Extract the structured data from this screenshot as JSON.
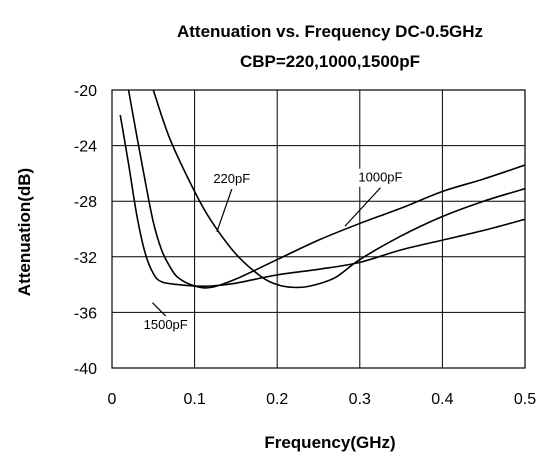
{
  "chart_data": {
    "type": "line",
    "title": "Attenuation vs. Frequency DC-0.5GHz",
    "subtitle": "CBP=220,1000,1500pF",
    "xlabel": "Frequency(GHz)",
    "ylabel": "Attenuation(dB)",
    "xlim": [
      0,
      0.5
    ],
    "ylim": [
      -40,
      -20
    ],
    "xticks": [
      0,
      0.1,
      0.2,
      0.3,
      0.4,
      0.5
    ],
    "xtick_labels": [
      "0",
      "0.1",
      "0.2",
      "0.3",
      "0.4",
      "0.5"
    ],
    "yticks": [
      -40,
      -36,
      -32,
      -28,
      -24,
      -20
    ],
    "ytick_labels": [
      "-40",
      "-36",
      "-32",
      "-28",
      "-24",
      "-20"
    ],
    "grid": true,
    "legend": "none (curves labeled inline)",
    "series": [
      {
        "name": "220pF",
        "x": [
          0.05,
          0.07,
          0.1,
          0.12,
          0.15,
          0.18,
          0.2,
          0.22,
          0.24,
          0.27,
          0.3,
          0.35,
          0.4,
          0.45,
          0.5
        ],
        "y": [
          -20,
          -23.5,
          -27.3,
          -29.4,
          -31.8,
          -33.4,
          -34.0,
          -34.2,
          -34.1,
          -33.5,
          -32.2,
          -30.5,
          -29.1,
          -28.0,
          -27.1
        ]
      },
      {
        "name": "1000pF",
        "x": [
          0.02,
          0.03,
          0.04,
          0.05,
          0.06,
          0.07,
          0.08,
          0.1,
          0.12,
          0.15,
          0.2,
          0.25,
          0.3,
          0.35,
          0.4,
          0.45,
          0.5
        ],
        "y": [
          -20,
          -23.3,
          -26.5,
          -29.5,
          -31.5,
          -32.7,
          -33.5,
          -34.1,
          -34.2,
          -33.6,
          -32.2,
          -30.8,
          -29.6,
          -28.5,
          -27.3,
          -26.4,
          -25.4
        ]
      },
      {
        "name": "1500pF",
        "x": [
          0.01,
          0.02,
          0.03,
          0.04,
          0.05,
          0.06,
          0.08,
          0.1,
          0.12,
          0.15,
          0.2,
          0.25,
          0.3,
          0.35,
          0.4,
          0.45,
          0.5
        ],
        "y": [
          -21.8,
          -25.3,
          -29.0,
          -31.7,
          -33.2,
          -33.8,
          -34.0,
          -34.1,
          -34.1,
          -33.9,
          -33.3,
          -32.9,
          -32.4,
          -31.5,
          -30.8,
          -30.1,
          -29.3
        ]
      }
    ],
    "annotations": [
      {
        "text": "220pF",
        "label_xy": [
          0.145,
          -26.7
        ],
        "arrow_to": [
          0.127,
          -30.2
        ]
      },
      {
        "text": "1000pF",
        "label_xy": [
          0.325,
          -26.6
        ],
        "arrow_to": [
          0.282,
          -29.8
        ]
      },
      {
        "text": "1500pF",
        "label_xy": [
          0.065,
          -37.2
        ],
        "arrow_to": [
          0.049,
          -35.3
        ]
      }
    ]
  }
}
